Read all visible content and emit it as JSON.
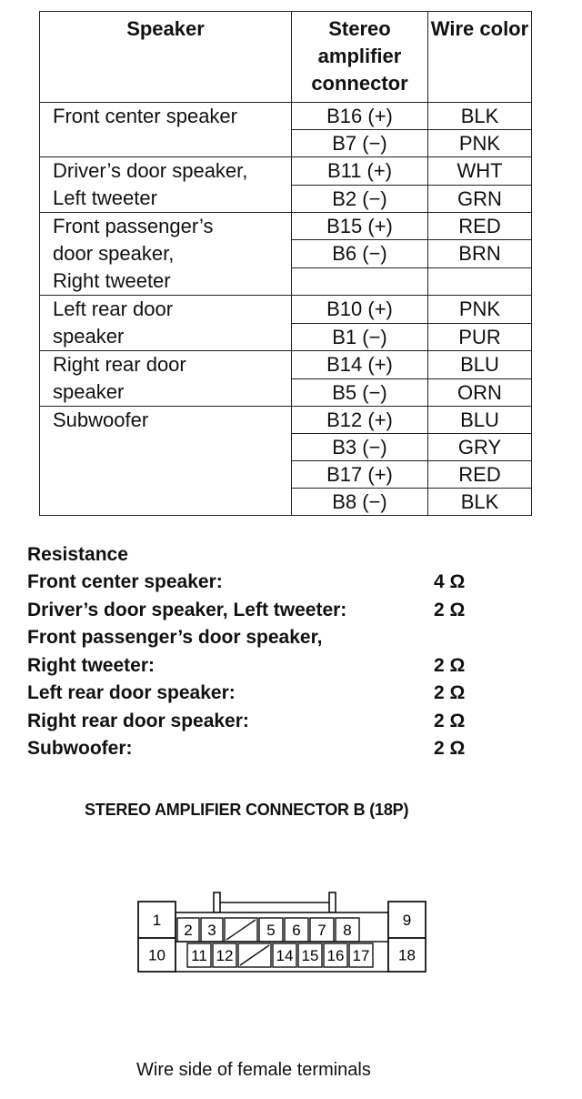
{
  "table": {
    "headers": {
      "speaker": "Speaker",
      "connector": [
        "Stereo",
        "amplifier",
        "connector"
      ],
      "wire_color": "Wire color"
    },
    "rows": [
      {
        "speaker": [
          "Front center speaker"
        ],
        "pins": [
          {
            "pin": "B16 (+)",
            "color": "BLK"
          },
          {
            "pin": "B7 (−)",
            "color": "PNK"
          }
        ]
      },
      {
        "speaker": [
          "Driver’s door speaker,",
          "Left tweeter"
        ],
        "pins": [
          {
            "pin": "B11 (+)",
            "color": "WHT"
          },
          {
            "pin": "B2 (−)",
            "color": "GRN"
          }
        ]
      },
      {
        "speaker": [
          "Front passenger’s",
          "door speaker,",
          "Right tweeter"
        ],
        "pins": [
          {
            "pin": "B15 (+)",
            "color": "RED"
          },
          {
            "pin": "B6 (−)",
            "color": "BRN"
          }
        ]
      },
      {
        "speaker": [
          "Left rear door",
          "speaker"
        ],
        "pins": [
          {
            "pin": "B10 (+)",
            "color": "PNK"
          },
          {
            "pin": "B1 (−)",
            "color": "PUR"
          }
        ]
      },
      {
        "speaker": [
          "Right rear door",
          "speaker"
        ],
        "pins": [
          {
            "pin": "B14 (+)",
            "color": "BLU"
          },
          {
            "pin": "B5 (−)",
            "color": "ORN"
          }
        ]
      },
      {
        "speaker": [
          "Subwoofer"
        ],
        "pins": [
          {
            "pin": "B12 (+)",
            "color": "BLU"
          },
          {
            "pin": "B3 (−)",
            "color": "GRY"
          },
          {
            "pin": "B17 (+)",
            "color": "RED"
          },
          {
            "pin": "B8 (−)",
            "color": "BLK"
          }
        ]
      }
    ]
  },
  "resistance": {
    "title": "Resistance",
    "lines": [
      {
        "label": "Front center speaker:",
        "value": "4 Ω"
      },
      {
        "label": "Driver’s door speaker, Left tweeter:",
        "value": "2 Ω"
      },
      {
        "label": "Front passenger’s door speaker,",
        "value": ""
      },
      {
        "label": "Right tweeter:",
        "value": "2 Ω"
      },
      {
        "label": "Left rear door speaker:",
        "value": "2 Ω"
      },
      {
        "label": "Right rear door speaker:",
        "value": "2 Ω"
      },
      {
        "label": "Subwoofer:",
        "value": "2 Ω"
      }
    ]
  },
  "connector": {
    "title": "STEREO AMPLIFIER CONNECTOR B (18P)",
    "top_row": [
      "1",
      "2",
      "3",
      "",
      "5",
      "6",
      "7",
      "8",
      "9"
    ],
    "bottom_row": [
      "10",
      "11",
      "12",
      "",
      "14",
      "15",
      "16",
      "17",
      "18"
    ],
    "caption": "Wire side of female terminals"
  }
}
